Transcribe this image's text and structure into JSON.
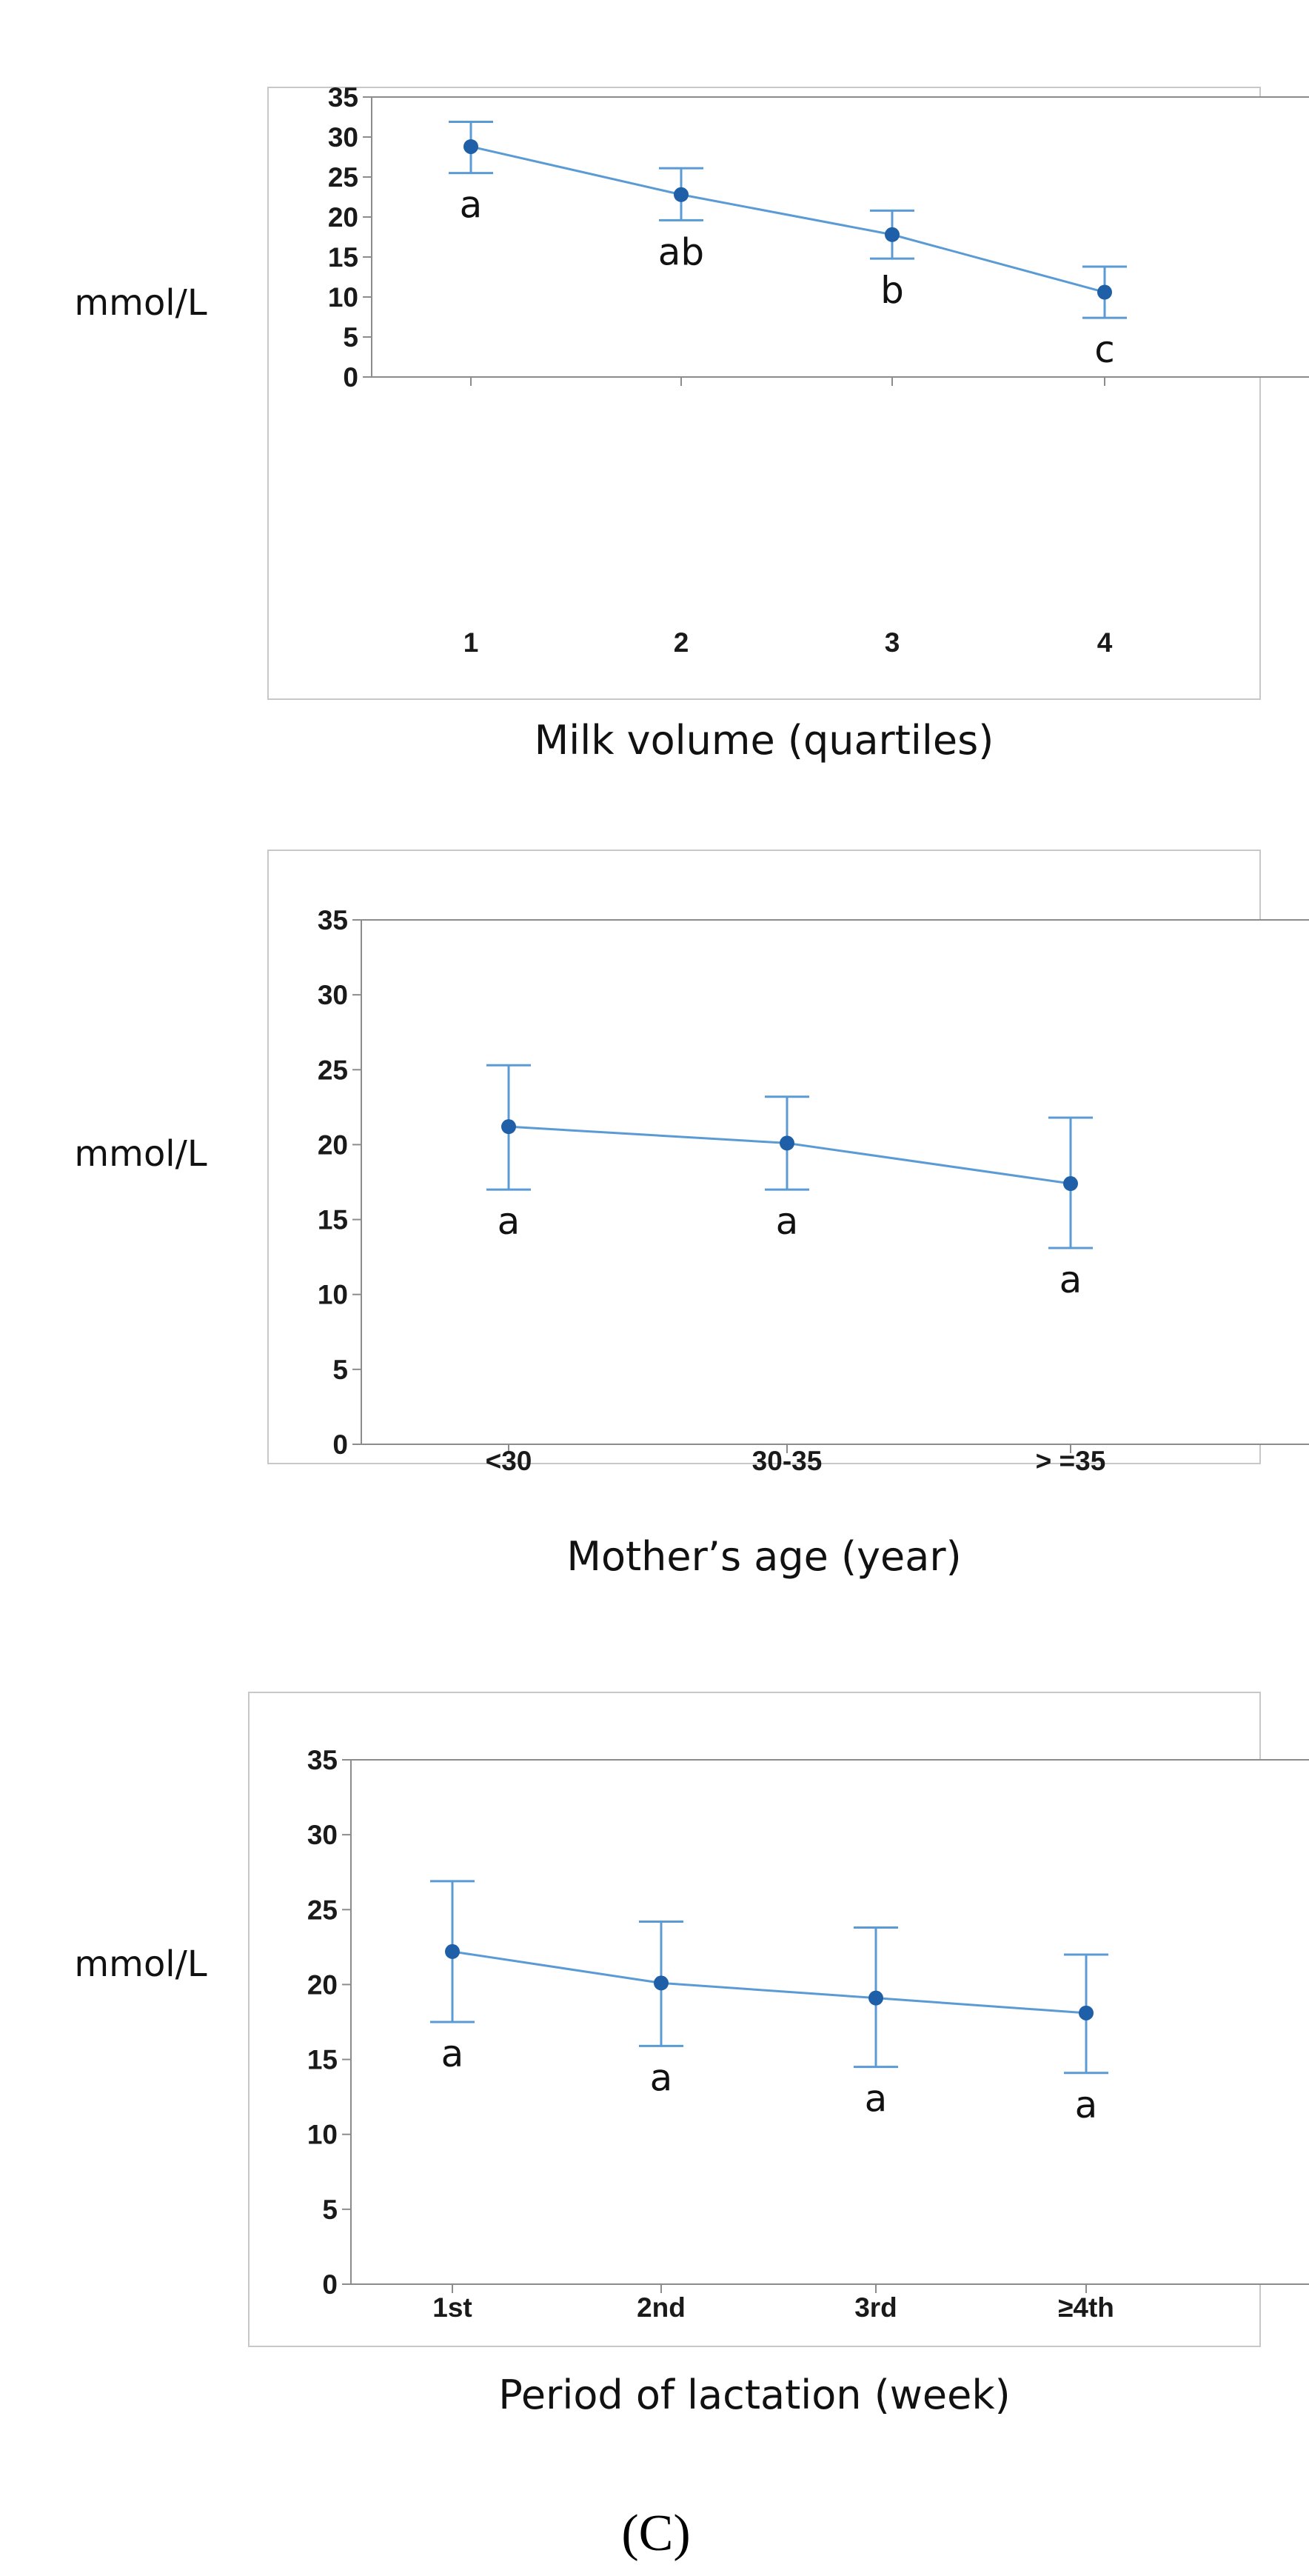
{
  "figure": {
    "panel_letter": "(C)"
  },
  "colors": {
    "series": "#5b9bd5",
    "marker": "#1f5fa8",
    "frame": "#c8c8c8",
    "axis": "#8c8c8c"
  },
  "chart_data": [
    {
      "type": "line",
      "ylabel": "mmol/L",
      "xlabel": "Milk volume (quartiles)",
      "categories": [
        "1",
        "2",
        "3",
        "4"
      ],
      "values": [
        28.8,
        22.8,
        17.8,
        10.6
      ],
      "error_low": [
        25.5,
        19.6,
        14.8,
        7.4
      ],
      "error_high": [
        31.9,
        26.1,
        20.8,
        13.8
      ],
      "group_labels": [
        "a",
        "ab",
        "b",
        "c"
      ],
      "ylim": [
        0,
        35
      ],
      "yticks": [
        "0",
        "5",
        "10",
        "15",
        "20",
        "25",
        "30",
        "35"
      ]
    },
    {
      "type": "line",
      "ylabel": "mmol/L",
      "xlabel": "Mother’s age (year)",
      "categories": [
        "<30",
        "30-35",
        "> =35"
      ],
      "values": [
        21.2,
        20.1,
        17.4
      ],
      "error_low": [
        17.0,
        17.0,
        13.1
      ],
      "error_high": [
        25.3,
        23.2,
        21.8
      ],
      "group_labels": [
        "a",
        "a",
        "a"
      ],
      "ylim": [
        0,
        35
      ],
      "yticks": [
        "0",
        "5",
        "10",
        "15",
        "20",
        "25",
        "30",
        "35"
      ]
    },
    {
      "type": "line",
      "ylabel": "mmol/L",
      "xlabel": "Period of lactation (week)",
      "categories": [
        "1st",
        "2nd",
        "3rd",
        "≥4th"
      ],
      "values": [
        22.2,
        20.1,
        19.1,
        18.1
      ],
      "error_low": [
        17.5,
        15.9,
        14.5,
        14.1
      ],
      "error_high": [
        26.9,
        24.2,
        23.8,
        22.0
      ],
      "group_labels": [
        "a",
        "a",
        "a",
        "a"
      ],
      "ylim": [
        0,
        35
      ],
      "yticks": [
        "0",
        "5",
        "10",
        "15",
        "20",
        "25",
        "30",
        "35"
      ]
    }
  ]
}
